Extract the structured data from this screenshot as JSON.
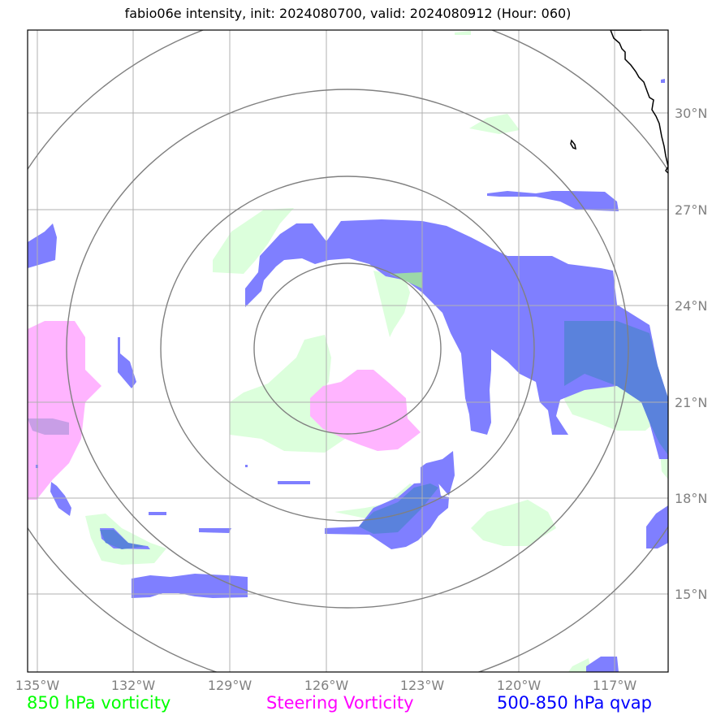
{
  "title": "fabio06e intensity, init: 2024080700, valid: 2024080912 (Hour: 060)",
  "lon_ticks": [
    "135°W",
    "132°W",
    "129°W",
    "126°W",
    "123°W",
    "120°W",
    "117°W"
  ],
  "lat_ticks": [
    "30°N",
    "27°N",
    "24°N",
    "21°N",
    "18°N",
    "15°N"
  ],
  "legend": {
    "vorticity": {
      "label": "850 hPa vorticity",
      "color": "#00ff00"
    },
    "steering": {
      "label": "Steering Vorticity",
      "color": "#ff00ff"
    },
    "qvap": {
      "label": "500-850 hPa qvap",
      "color": "#0000ff"
    }
  },
  "colors": {
    "vorticity_fill": "#dcffdc",
    "steering_fill": "#ffb4ff",
    "qvap_fill": "#7f7fff",
    "overlap_fill": "#5a82dc",
    "grid": "#b0b0b0",
    "rings": "#808080"
  }
}
